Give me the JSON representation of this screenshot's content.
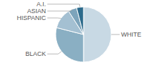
{
  "chart_data": {
    "type": "pie",
    "categories": [
      "WHITE",
      "BLACK",
      "HISPANIC",
      "ASIAN",
      "A.I."
    ],
    "values": [
      50,
      29,
      12,
      5,
      4
    ],
    "colors": [
      "#c8d9e4",
      "#8aafc3",
      "#a4c0d2",
      "#7da4bb",
      "#2d6b8c"
    ]
  }
}
